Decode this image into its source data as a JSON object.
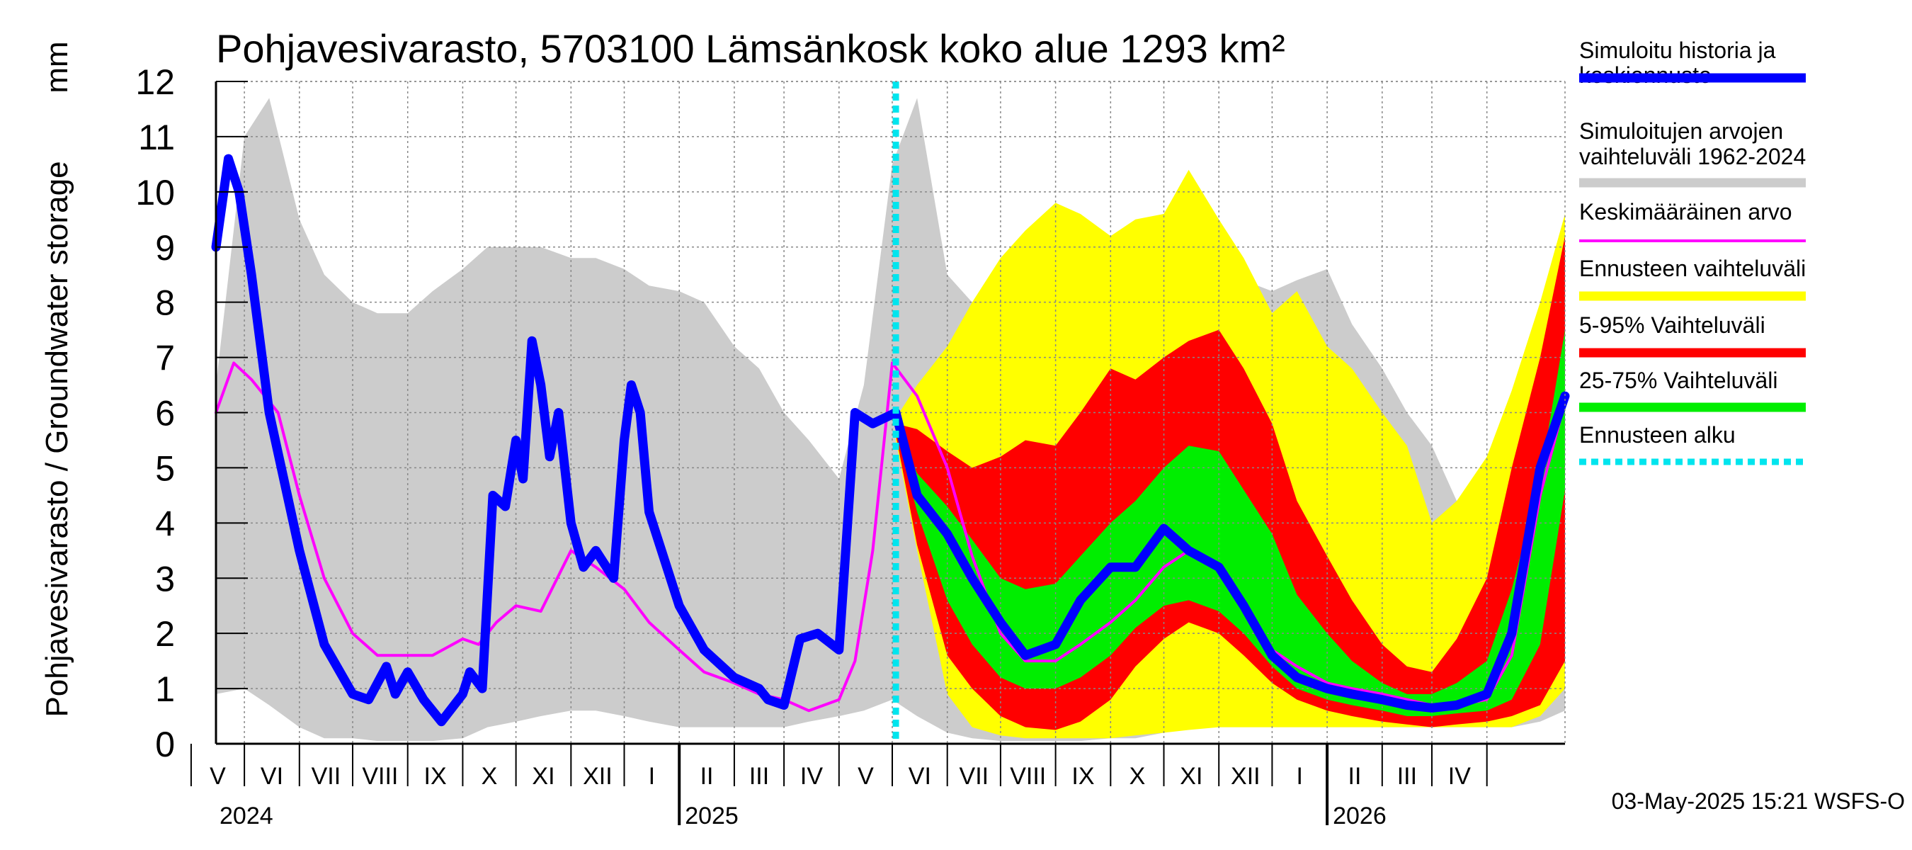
{
  "chart_data": {
    "type": "area",
    "title": "Pohjavesivarasto, 5703100 Lämsänkosk koko alue 1293 km²",
    "ylabel": "Pohjavesivarasto / Groundwater storage",
    "yunit": "mm",
    "ylim": [
      0,
      12
    ],
    "yticks": [
      "0",
      "1",
      "2",
      "3",
      "4",
      "5",
      "6",
      "7",
      "8",
      "9",
      "10",
      "11",
      "12"
    ],
    "x_range": [
      "2024-04-15",
      "2026-05-15"
    ],
    "months": [
      "V",
      "VI",
      "VII",
      "VIII",
      "IX",
      "X",
      "XI",
      "XII",
      "I",
      "II",
      "III",
      "IV",
      "V",
      "VI",
      "VII",
      "VIII",
      "IX",
      "X",
      "XI",
      "XII",
      "I",
      "II",
      "III",
      "IV"
    ],
    "years": [
      "2024",
      "2025",
      "2026"
    ],
    "grid": true,
    "forecast_start": "2025-05-03",
    "footer": "03-May-2025 15:21 WSFS-O",
    "legend_items": [
      {
        "line1": "Simuloitu historia ja",
        "line2": "keskiennuste",
        "color": "#0000ff",
        "style": "thick"
      },
      {
        "line1": "Simuloitujen arvojen",
        "line2": "vaihteluväli 1962-2024",
        "color": "#cccccc",
        "style": "thick"
      },
      {
        "line1": "Keskimääräinen arvo",
        "line2": "",
        "color": "#ff00ff",
        "style": "thin"
      },
      {
        "line1": "Ennusteen vaihteluväli",
        "line2": "",
        "color": "#ffff00",
        "style": "thick"
      },
      {
        "line1": "5-95% Vaihteluväli",
        "line2": "",
        "color": "#ff0000",
        "style": "thick"
      },
      {
        "line1": "25-75% Vaihteluväli",
        "line2": "",
        "color": "#00ee00",
        "style": "thick"
      },
      {
        "line1": "Ennusteen alku",
        "line2": "",
        "color": "#00e5ee",
        "style": "dashed"
      }
    ],
    "series": [
      {
        "name": "Simuloitujen arvojen vaihteluväli 1962-2024",
        "kind": "band",
        "color": "#cccccc",
        "x": [
          "2024-04-15",
          "2024-05-01",
          "2024-05-15",
          "2024-06-01",
          "2024-06-15",
          "2024-07-01",
          "2024-07-15",
          "2024-08-01",
          "2024-08-15",
          "2024-09-01",
          "2024-09-15",
          "2024-10-01",
          "2024-10-15",
          "2024-11-01",
          "2024-11-15",
          "2024-12-01",
          "2024-12-15",
          "2025-01-01",
          "2025-01-15",
          "2025-02-01",
          "2025-02-15",
          "2025-03-01",
          "2025-03-15",
          "2025-04-01",
          "2025-04-15",
          "2025-05-01",
          "2025-05-15",
          "2025-06-01",
          "2025-06-15",
          "2025-07-01",
          "2025-07-15",
          "2025-08-01",
          "2025-08-15",
          "2025-09-01",
          "2025-09-15",
          "2025-10-01",
          "2025-10-15",
          "2025-11-01",
          "2025-11-15",
          "2025-12-01",
          "2025-12-15",
          "2026-01-01",
          "2026-01-15",
          "2026-02-01",
          "2026-02-15",
          "2026-03-01",
          "2026-03-15",
          "2026-04-01",
          "2026-04-15",
          "2026-05-01",
          "2026-05-15"
        ],
        "low": [
          0.9,
          1.0,
          0.7,
          0.3,
          0.1,
          0.1,
          0.05,
          0.05,
          0.05,
          0.1,
          0.3,
          0.4,
          0.5,
          0.6,
          0.6,
          0.5,
          0.4,
          0.3,
          0.3,
          0.3,
          0.3,
          0.3,
          0.4,
          0.5,
          0.6,
          0.8,
          0.5,
          0.2,
          0.1,
          0.05,
          0.05,
          0.05,
          0.05,
          0.1,
          0.1,
          0.2,
          0.3,
          0.3,
          0.3,
          0.3,
          0.3,
          0.3,
          0.3,
          0.3,
          0.3,
          0.3,
          0.3,
          0.3,
          0.3,
          0.4,
          0.6
        ],
        "high": [
          6.5,
          11.0,
          11.7,
          9.5,
          8.5,
          8.0,
          7.8,
          7.8,
          8.2,
          8.6,
          9.0,
          9.0,
          9.0,
          8.8,
          8.8,
          8.6,
          8.3,
          8.2,
          8.0,
          7.2,
          6.8,
          6.0,
          5.5,
          4.8,
          6.5,
          10.5,
          11.7,
          8.5,
          8.0,
          7.8,
          7.8,
          8.0,
          8.2,
          8.5,
          8.6,
          8.9,
          8.8,
          8.6,
          8.4,
          8.2,
          8.4,
          8.6,
          7.6,
          6.8,
          6.0,
          5.4,
          4.4,
          4.6,
          5.2,
          6.5,
          9.5
        ]
      },
      {
        "name": "Ennusteen vaihteluväli",
        "kind": "band",
        "color": "#ffff00",
        "x": [
          "2025-05-03",
          "2025-05-15",
          "2025-06-01",
          "2025-06-15",
          "2025-07-01",
          "2025-07-15",
          "2025-08-01",
          "2025-08-15",
          "2025-09-01",
          "2025-09-15",
          "2025-10-01",
          "2025-10-15",
          "2025-11-01",
          "2025-11-15",
          "2025-12-01",
          "2025-12-15",
          "2026-01-01",
          "2026-01-15",
          "2026-02-01",
          "2026-02-15",
          "2026-03-01",
          "2026-03-15",
          "2026-04-01",
          "2026-04-15",
          "2026-05-01",
          "2026-05-15"
        ],
        "low": [
          5.5,
          3.5,
          0.9,
          0.3,
          0.15,
          0.1,
          0.1,
          0.1,
          0.1,
          0.15,
          0.2,
          0.25,
          0.3,
          0.3,
          0.3,
          0.3,
          0.3,
          0.3,
          0.3,
          0.3,
          0.3,
          0.3,
          0.3,
          0.3,
          0.5,
          1.0
        ],
        "high": [
          5.9,
          6.5,
          7.2,
          8.0,
          8.8,
          9.3,
          9.8,
          9.6,
          9.2,
          9.5,
          9.6,
          10.4,
          9.5,
          8.8,
          7.8,
          8.2,
          7.2,
          6.8,
          6.0,
          5.4,
          4.0,
          4.4,
          5.2,
          6.4,
          8.0,
          9.6
        ]
      },
      {
        "name": "5-95% Vaihteluväli",
        "kind": "band",
        "color": "#ff0000",
        "x": [
          "2025-05-03",
          "2025-05-15",
          "2025-06-01",
          "2025-06-15",
          "2025-07-01",
          "2025-07-15",
          "2025-08-01",
          "2025-08-15",
          "2025-09-01",
          "2025-09-15",
          "2025-10-01",
          "2025-10-15",
          "2025-11-01",
          "2025-11-15",
          "2025-12-01",
          "2025-12-15",
          "2026-01-01",
          "2026-01-15",
          "2026-02-01",
          "2026-02-15",
          "2026-03-01",
          "2026-03-15",
          "2026-04-01",
          "2026-04-15",
          "2026-05-01",
          "2026-05-15"
        ],
        "low": [
          5.6,
          3.6,
          1.6,
          1.0,
          0.5,
          0.3,
          0.25,
          0.4,
          0.8,
          1.4,
          1.9,
          2.2,
          2.0,
          1.6,
          1.1,
          0.8,
          0.6,
          0.5,
          0.4,
          0.35,
          0.3,
          0.35,
          0.4,
          0.5,
          0.7,
          1.5
        ],
        "high": [
          5.8,
          5.7,
          5.3,
          5.0,
          5.2,
          5.5,
          5.4,
          6.0,
          6.8,
          6.6,
          7.0,
          7.3,
          7.5,
          6.8,
          5.8,
          4.4,
          3.4,
          2.6,
          1.8,
          1.4,
          1.3,
          1.9,
          3.0,
          5.0,
          7.0,
          9.2
        ]
      },
      {
        "name": "25-75% Vaihteluväli",
        "kind": "band",
        "color": "#00ee00",
        "x": [
          "2025-05-03",
          "2025-05-15",
          "2025-06-01",
          "2025-06-15",
          "2025-07-01",
          "2025-07-15",
          "2025-08-01",
          "2025-08-15",
          "2025-09-01",
          "2025-09-15",
          "2025-10-01",
          "2025-10-15",
          "2025-11-01",
          "2025-11-15",
          "2025-12-01",
          "2025-12-15",
          "2026-01-01",
          "2026-01-15",
          "2026-02-01",
          "2026-02-15",
          "2026-03-01",
          "2026-03-15",
          "2026-04-01",
          "2026-04-15",
          "2026-05-01",
          "2026-05-15"
        ],
        "low": [
          5.7,
          4.2,
          2.6,
          1.8,
          1.2,
          1.0,
          1.0,
          1.2,
          1.6,
          2.1,
          2.5,
          2.6,
          2.4,
          2.0,
          1.4,
          1.0,
          0.8,
          0.7,
          0.6,
          0.5,
          0.5,
          0.55,
          0.6,
          0.8,
          1.8,
          4.6
        ],
        "high": [
          5.8,
          4.9,
          4.3,
          3.7,
          3.0,
          2.8,
          2.9,
          3.4,
          4.0,
          4.4,
          5.0,
          5.4,
          5.3,
          4.6,
          3.8,
          2.7,
          2.0,
          1.5,
          1.1,
          0.9,
          0.9,
          1.1,
          1.5,
          2.8,
          4.8,
          7.5
        ]
      },
      {
        "name": "Keskimääräinen arvo",
        "kind": "line",
        "color": "#ff00ff",
        "x": [
          "2024-04-15",
          "2024-04-25",
          "2024-05-05",
          "2024-05-20",
          "2024-06-01",
          "2024-06-15",
          "2024-07-01",
          "2024-07-15",
          "2024-08-01",
          "2024-08-15",
          "2024-09-01",
          "2024-09-10",
          "2024-09-20",
          "2024-10-01",
          "2024-10-15",
          "2024-11-01",
          "2024-11-15",
          "2024-12-01",
          "2024-12-15",
          "2025-01-01",
          "2025-01-15",
          "2025-02-01",
          "2025-02-15",
          "2025-03-01",
          "2025-03-15",
          "2025-04-01",
          "2025-04-10",
          "2025-04-20",
          "2025-05-01",
          "2025-05-15",
          "2025-06-01",
          "2025-06-15",
          "2025-07-01",
          "2025-07-15",
          "2025-08-01",
          "2025-08-15",
          "2025-09-01",
          "2025-09-15",
          "2025-10-01",
          "2025-10-15",
          "2025-11-01",
          "2025-11-15",
          "2025-12-01",
          "2025-12-15",
          "2026-01-01",
          "2026-01-15",
          "2026-02-01",
          "2026-02-15",
          "2026-03-01",
          "2026-03-15",
          "2026-04-01",
          "2026-04-15",
          "2026-05-01",
          "2026-05-15"
        ],
        "y": [
          6.0,
          6.9,
          6.6,
          6.0,
          4.5,
          3.0,
          2.0,
          1.6,
          1.6,
          1.6,
          1.9,
          1.8,
          2.2,
          2.5,
          2.4,
          3.5,
          3.2,
          2.8,
          2.2,
          1.7,
          1.3,
          1.1,
          0.9,
          0.8,
          0.6,
          0.8,
          1.5,
          3.5,
          6.9,
          6.3,
          5.0,
          3.4,
          2.0,
          1.5,
          1.5,
          1.8,
          2.2,
          2.6,
          3.2,
          3.5,
          3.2,
          2.5,
          1.7,
          1.4,
          1.1,
          1.0,
          0.9,
          0.8,
          0.7,
          0.7,
          0.8,
          1.6,
          4.5,
          6.2
        ]
      },
      {
        "name": "Simuloitu historia ja keskiennuste",
        "kind": "line",
        "color": "#0000ff",
        "x": [
          "2024-04-15",
          "2024-04-22",
          "2024-04-28",
          "2024-05-05",
          "2024-05-15",
          "2024-06-01",
          "2024-06-15",
          "2024-07-01",
          "2024-07-10",
          "2024-07-20",
          "2024-07-25",
          "2024-08-01",
          "2024-08-10",
          "2024-08-20",
          "2024-09-01",
          "2024-09-05",
          "2024-09-12",
          "2024-09-18",
          "2024-09-25",
          "2024-10-01",
          "2024-10-05",
          "2024-10-10",
          "2024-10-15",
          "2024-10-20",
          "2024-10-25",
          "2024-11-01",
          "2024-11-08",
          "2024-11-15",
          "2024-11-25",
          "2024-12-01",
          "2024-12-05",
          "2024-12-10",
          "2024-12-15",
          "2025-01-01",
          "2025-01-15",
          "2025-02-01",
          "2025-02-15",
          "2025-02-20",
          "2025-03-01",
          "2025-03-10",
          "2025-03-20",
          "2025-04-01",
          "2025-04-10",
          "2025-04-20",
          "2025-05-03",
          "2025-05-15",
          "2025-06-01",
          "2025-06-15",
          "2025-07-01",
          "2025-07-15",
          "2025-08-01",
          "2025-08-15",
          "2025-09-01",
          "2025-09-15",
          "2025-10-01",
          "2025-10-15",
          "2025-11-01",
          "2025-11-15",
          "2025-12-01",
          "2025-12-15",
          "2026-01-01",
          "2026-01-15",
          "2026-02-01",
          "2026-02-15",
          "2026-03-01",
          "2026-03-15",
          "2026-04-01",
          "2026-04-15",
          "2026-05-01",
          "2026-05-15"
        ],
        "y": [
          9.0,
          10.6,
          10.0,
          8.5,
          6.0,
          3.5,
          1.8,
          0.9,
          0.8,
          1.4,
          0.9,
          1.3,
          0.8,
          0.4,
          0.9,
          1.3,
          1.0,
          4.5,
          4.3,
          5.5,
          4.8,
          7.3,
          6.5,
          5.2,
          6.0,
          4.0,
          3.2,
          3.5,
          3.0,
          5.5,
          6.5,
          6.0,
          4.2,
          2.5,
          1.7,
          1.2,
          1.0,
          0.8,
          0.7,
          1.9,
          2.0,
          1.7,
          6.0,
          5.8,
          6.0,
          4.5,
          3.8,
          3.0,
          2.2,
          1.6,
          1.8,
          2.6,
          3.2,
          3.2,
          3.9,
          3.5,
          3.2,
          2.5,
          1.6,
          1.2,
          1.0,
          0.9,
          0.8,
          0.7,
          0.65,
          0.7,
          0.9,
          2.0,
          5.0,
          6.3
        ]
      }
    ]
  }
}
